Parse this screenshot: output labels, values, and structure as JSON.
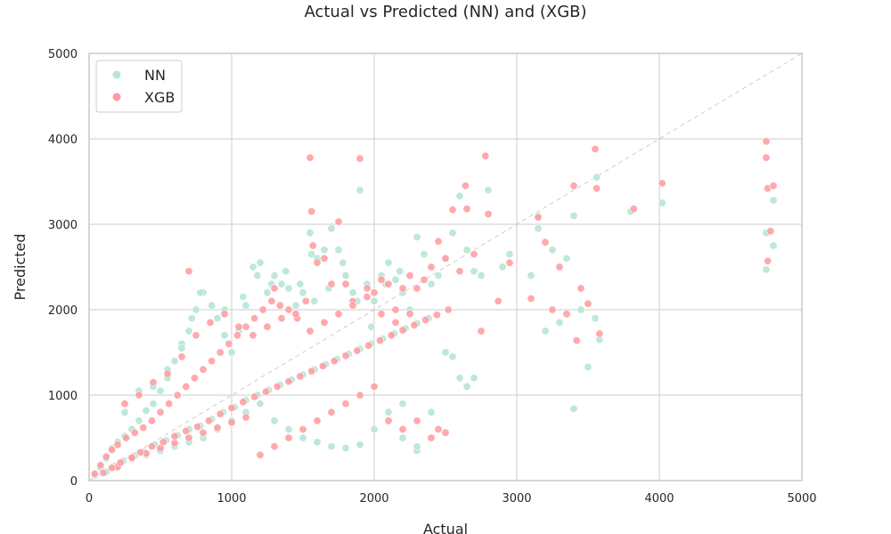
{
  "chart_data": {
    "type": "scatter",
    "title": "Actual vs Predicted (NN) and (XGB)",
    "xlabel": "Actual",
    "ylabel": "Predicted",
    "xlim": [
      0,
      5000
    ],
    "ylim": [
      0,
      5000
    ],
    "xticks": [
      "0",
      "1000",
      "2000",
      "3000",
      "4000",
      "5000"
    ],
    "yticks": [
      "0",
      "1000",
      "2000",
      "3000",
      "4000",
      "5000"
    ],
    "grid": true,
    "legend_position": "top-left",
    "reference_line": {
      "from": [
        0,
        0
      ],
      "to": [
        5000,
        5000
      ],
      "style": "dashed",
      "color": "#cccccc"
    },
    "series": [
      {
        "name": "NN",
        "color": "#b6e6d6",
        "points": [
          [
            40,
            60
          ],
          [
            80,
            150
          ],
          [
            120,
            260
          ],
          [
            160,
            380
          ],
          [
            200,
            450
          ],
          [
            250,
            520
          ],
          [
            300,
            600
          ],
          [
            350,
            700
          ],
          [
            400,
            820
          ],
          [
            450,
            900
          ],
          [
            500,
            1050
          ],
          [
            550,
            1200
          ],
          [
            600,
            1400
          ],
          [
            650,
            1600
          ],
          [
            700,
            1750
          ],
          [
            750,
            2000
          ],
          [
            800,
            2200
          ],
          [
            860,
            2050
          ],
          [
            900,
            1900
          ],
          [
            950,
            1700
          ],
          [
            1000,
            1500
          ],
          [
            1050,
            1750
          ],
          [
            1100,
            2050
          ],
          [
            1150,
            2500
          ],
          [
            1200,
            2550
          ],
          [
            1250,
            2200
          ],
          [
            1300,
            2400
          ],
          [
            1350,
            2300
          ],
          [
            1400,
            2250
          ],
          [
            1450,
            2050
          ],
          [
            1500,
            2200
          ],
          [
            1550,
            2900
          ],
          [
            1560,
            2650
          ],
          [
            1600,
            2600
          ],
          [
            1650,
            2700
          ],
          [
            1700,
            2950
          ],
          [
            1750,
            2700
          ],
          [
            1800,
            2400
          ],
          [
            1850,
            2200
          ],
          [
            1900,
            3400
          ],
          [
            1950,
            2300
          ],
          [
            2000,
            2100
          ],
          [
            2050,
            2400
          ],
          [
            2100,
            2550
          ],
          [
            2150,
            2350
          ],
          [
            2200,
            2200
          ],
          [
            2250,
            2000
          ],
          [
            2300,
            2850
          ],
          [
            2350,
            2650
          ],
          [
            2400,
            2300
          ],
          [
            2450,
            2400
          ],
          [
            2500,
            2600
          ],
          [
            2550,
            2900
          ],
          [
            2600,
            3330
          ],
          [
            2650,
            2700
          ],
          [
            2700,
            2450
          ],
          [
            2750,
            2400
          ],
          [
            2800,
            3400
          ],
          [
            2900,
            2500
          ],
          [
            2950,
            2650
          ],
          [
            3100,
            2400
          ],
          [
            3150,
            3100
          ],
          [
            3150,
            2950
          ],
          [
            3200,
            1750
          ],
          [
            3250,
            2700
          ],
          [
            3300,
            1850
          ],
          [
            3350,
            2600
          ],
          [
            3400,
            3100
          ],
          [
            3400,
            840
          ],
          [
            3450,
            2000
          ],
          [
            3500,
            1330
          ],
          [
            3550,
            1900
          ],
          [
            3560,
            3550
          ],
          [
            3580,
            1650
          ],
          [
            3800,
            3150
          ],
          [
            4020,
            3250
          ],
          [
            4750,
            2900
          ],
          [
            4750,
            2470
          ],
          [
            4800,
            3280
          ],
          [
            4800,
            2750
          ],
          [
            200,
            150
          ],
          [
            300,
            250
          ],
          [
            400,
            300
          ],
          [
            500,
            350
          ],
          [
            600,
            400
          ],
          [
            700,
            450
          ],
          [
            800,
            500
          ],
          [
            900,
            600
          ],
          [
            1000,
            700
          ],
          [
            1100,
            800
          ],
          [
            1200,
            900
          ],
          [
            1300,
            700
          ],
          [
            1400,
            600
          ],
          [
            1500,
            500
          ],
          [
            1600,
            450
          ],
          [
            1700,
            400
          ],
          [
            1800,
            380
          ],
          [
            1900,
            420
          ],
          [
            2000,
            600
          ],
          [
            2100,
            800
          ],
          [
            2200,
            900
          ],
          [
            2300,
            350
          ],
          [
            2400,
            800
          ],
          [
            2500,
            1500
          ],
          [
            2550,
            1450
          ],
          [
            2600,
            1200
          ],
          [
            2650,
            1100
          ],
          [
            2700,
            1200
          ],
          [
            2300,
            400
          ],
          [
            2200,
            500
          ],
          [
            250,
            800
          ],
          [
            350,
            1050
          ],
          [
            450,
            1100
          ],
          [
            550,
            1300
          ],
          [
            650,
            1550
          ],
          [
            720,
            1900
          ],
          [
            780,
            2200
          ],
          [
            950,
            2000
          ],
          [
            1080,
            2150
          ],
          [
            1180,
            2400
          ],
          [
            1280,
            2300
          ],
          [
            1380,
            2450
          ],
          [
            1480,
            2300
          ],
          [
            1580,
            2100
          ],
          [
            1680,
            2250
          ],
          [
            1780,
            2550
          ],
          [
            1880,
            2100
          ],
          [
            1980,
            1800
          ],
          [
            2080,
            2300
          ],
          [
            2180,
            2450
          ],
          [
            120,
            100
          ],
          [
            180,
            170
          ],
          [
            240,
            230
          ],
          [
            320,
            290
          ],
          [
            380,
            340
          ],
          [
            460,
            420
          ],
          [
            540,
            470
          ],
          [
            620,
            530
          ],
          [
            700,
            600
          ],
          [
            780,
            640
          ],
          [
            860,
            720
          ],
          [
            940,
            800
          ],
          [
            1020,
            860
          ],
          [
            1100,
            940
          ],
          [
            1180,
            1000
          ],
          [
            1260,
            1060
          ],
          [
            1340,
            1120
          ],
          [
            1420,
            1180
          ],
          [
            1500,
            1240
          ],
          [
            1580,
            1300
          ],
          [
            1660,
            1360
          ],
          [
            1740,
            1420
          ],
          [
            1820,
            1480
          ],
          [
            1900,
            1540
          ],
          [
            1980,
            1600
          ],
          [
            2060,
            1660
          ],
          [
            2140,
            1720
          ],
          [
            2220,
            1780
          ],
          [
            2300,
            1840
          ],
          [
            2380,
            1900
          ]
        ]
      },
      {
        "name": "XGB",
        "color": "#ff9a9e",
        "points": [
          [
            40,
            80
          ],
          [
            80,
            180
          ],
          [
            120,
            280
          ],
          [
            160,
            360
          ],
          [
            200,
            420
          ],
          [
            260,
            500
          ],
          [
            320,
            560
          ],
          [
            380,
            620
          ],
          [
            440,
            700
          ],
          [
            500,
            800
          ],
          [
            560,
            900
          ],
          [
            620,
            1000
          ],
          [
            680,
            1100
          ],
          [
            700,
            2450
          ],
          [
            740,
            1200
          ],
          [
            800,
            1300
          ],
          [
            860,
            1400
          ],
          [
            920,
            1500
          ],
          [
            980,
            1600
          ],
          [
            1040,
            1700
          ],
          [
            1100,
            1800
          ],
          [
            1160,
            1900
          ],
          [
            1220,
            2000
          ],
          [
            1280,
            2100
          ],
          [
            1300,
            2250
          ],
          [
            1340,
            2050
          ],
          [
            1400,
            2000
          ],
          [
            1460,
            1900
          ],
          [
            1520,
            2100
          ],
          [
            1550,
            3780
          ],
          [
            1560,
            3150
          ],
          [
            1570,
            2750
          ],
          [
            1600,
            2550
          ],
          [
            1650,
            2600
          ],
          [
            1700,
            2300
          ],
          [
            1750,
            3030
          ],
          [
            1800,
            2300
          ],
          [
            1850,
            2100
          ],
          [
            1900,
            3770
          ],
          [
            1950,
            2250
          ],
          [
            2000,
            2200
          ],
          [
            2050,
            2350
          ],
          [
            2100,
            2300
          ],
          [
            2150,
            2000
          ],
          [
            2200,
            2250
          ],
          [
            2250,
            2400
          ],
          [
            2300,
            2250
          ],
          [
            2350,
            2350
          ],
          [
            2400,
            2500
          ],
          [
            2450,
            2800
          ],
          [
            2500,
            2600
          ],
          [
            2550,
            3170
          ],
          [
            2600,
            2450
          ],
          [
            2640,
            3450
          ],
          [
            2650,
            3180
          ],
          [
            2700,
            2650
          ],
          [
            2750,
            1750
          ],
          [
            2780,
            3800
          ],
          [
            2800,
            3120
          ],
          [
            2870,
            2100
          ],
          [
            2950,
            2550
          ],
          [
            3100,
            2130
          ],
          [
            3150,
            3080
          ],
          [
            3200,
            2790
          ],
          [
            3250,
            2000
          ],
          [
            3300,
            2500
          ],
          [
            3350,
            1950
          ],
          [
            3400,
            3450
          ],
          [
            3420,
            1640
          ],
          [
            3450,
            2250
          ],
          [
            3500,
            2070
          ],
          [
            3550,
            3880
          ],
          [
            3560,
            3420
          ],
          [
            3580,
            1720
          ],
          [
            3820,
            3180
          ],
          [
            4020,
            3480
          ],
          [
            4750,
            3970
          ],
          [
            4750,
            3780
          ],
          [
            4760,
            3420
          ],
          [
            4760,
            2570
          ],
          [
            4780,
            2920
          ],
          [
            4800,
            3450
          ],
          [
            200,
            160
          ],
          [
            300,
            260
          ],
          [
            400,
            320
          ],
          [
            500,
            380
          ],
          [
            600,
            440
          ],
          [
            700,
            500
          ],
          [
            800,
            560
          ],
          [
            900,
            620
          ],
          [
            1000,
            680
          ],
          [
            1100,
            740
          ],
          [
            1200,
            300
          ],
          [
            1300,
            400
          ],
          [
            1400,
            500
          ],
          [
            1500,
            600
          ],
          [
            1600,
            700
          ],
          [
            1700,
            800
          ],
          [
            1800,
            900
          ],
          [
            1900,
            1000
          ],
          [
            2000,
            1100
          ],
          [
            2100,
            700
          ],
          [
            2200,
            600
          ],
          [
            2300,
            700
          ],
          [
            2400,
            500
          ],
          [
            2450,
            600
          ],
          [
            2500,
            560
          ],
          [
            250,
            900
          ],
          [
            350,
            1000
          ],
          [
            450,
            1150
          ],
          [
            550,
            1250
          ],
          [
            650,
            1450
          ],
          [
            750,
            1700
          ],
          [
            850,
            1850
          ],
          [
            950,
            1950
          ],
          [
            1050,
            1800
          ],
          [
            1150,
            1700
          ],
          [
            1250,
            1800
          ],
          [
            1350,
            1900
          ],
          [
            1450,
            1950
          ],
          [
            1550,
            1750
          ],
          [
            1650,
            1850
          ],
          [
            1750,
            1950
          ],
          [
            1850,
            2050
          ],
          [
            1950,
            2150
          ],
          [
            2050,
            1950
          ],
          [
            2150,
            1850
          ],
          [
            2250,
            1950
          ],
          [
            100,
            90
          ],
          [
            160,
            150
          ],
          [
            220,
            210
          ],
          [
            300,
            270
          ],
          [
            360,
            330
          ],
          [
            440,
            400
          ],
          [
            520,
            450
          ],
          [
            600,
            520
          ],
          [
            680,
            580
          ],
          [
            760,
            630
          ],
          [
            840,
            700
          ],
          [
            920,
            780
          ],
          [
            1000,
            850
          ],
          [
            1080,
            920
          ],
          [
            1160,
            980
          ],
          [
            1240,
            1040
          ],
          [
            1320,
            1100
          ],
          [
            1400,
            1160
          ],
          [
            1480,
            1220
          ],
          [
            1560,
            1280
          ],
          [
            1640,
            1340
          ],
          [
            1720,
            1400
          ],
          [
            1800,
            1460
          ],
          [
            1880,
            1520
          ],
          [
            1960,
            1580
          ],
          [
            2040,
            1640
          ],
          [
            2120,
            1700
          ],
          [
            2200,
            1760
          ],
          [
            2280,
            1820
          ],
          [
            2360,
            1880
          ],
          [
            2440,
            1940
          ],
          [
            2520,
            2000
          ]
        ]
      }
    ]
  }
}
